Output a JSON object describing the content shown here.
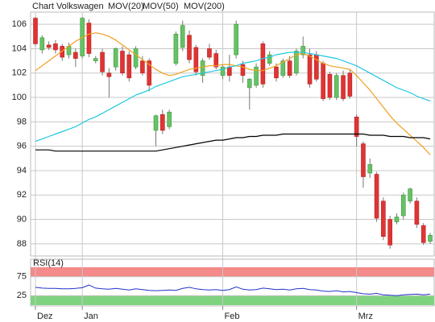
{
  "chart_data": [
    {
      "type": "candlestick",
      "title": "Chart Volkswagen",
      "title_color": "#e2583e",
      "up_color": "#66c266",
      "down_color": "#e03434",
      "categories": [
        "Dez",
        null,
        null,
        null,
        null,
        null,
        null,
        "Jan",
        null,
        null,
        null,
        null,
        null,
        null,
        null,
        null,
        null,
        null,
        null,
        null,
        null,
        null,
        null,
        null,
        null,
        null,
        null,
        null,
        "Feb",
        null,
        null,
        null,
        null,
        null,
        null,
        null,
        null,
        null,
        null,
        null,
        null,
        null,
        null,
        null,
        null,
        null,
        null,
        null,
        "Mrz",
        null,
        null,
        null,
        null,
        null,
        null,
        null,
        null,
        null,
        null,
        null
      ],
      "open": [
        106.5,
        103.9,
        104.3,
        104.4,
        104.2,
        103.5,
        103.7,
        103.4,
        106.1,
        103.0,
        103.7,
        102.0,
        102.5,
        103.8,
        103.5,
        102.5,
        103.0,
        103.0,
        97.3,
        98.6,
        97.6,
        102.8,
        104.1,
        105.1,
        104.1,
        101.8,
        104.0,
        103.6,
        101.8,
        102.5,
        103.5,
        102.7,
        100.8,
        101.0,
        104.4,
        102.8,
        102.5,
        101.8,
        103.0,
        102.0,
        103.5,
        103.5,
        103.5,
        102.8,
        101.9,
        100.0,
        101.8,
        102.0,
        98.4,
        96.2,
        93.8,
        93.7,
        91.5,
        90.0,
        89.8,
        90.3,
        91.5,
        91.5,
        89.5,
        88.2
      ],
      "high": [
        106.6,
        105.1,
        104.6,
        104.7,
        104.4,
        104.5,
        104.0,
        106.6,
        106.4,
        103.4,
        104.0,
        102.4,
        104.1,
        104.2,
        103.8,
        104.2,
        103.4,
        103.2,
        98.6,
        99.0,
        99.0,
        105.4,
        106.3,
        105.5,
        104.3,
        103.2,
        104.4,
        103.9,
        102.7,
        103.5,
        106.3,
        103.0,
        101.6,
        102.8,
        104.6,
        103.8,
        102.8,
        103.2,
        103.4,
        104.0,
        105.0,
        104.0,
        103.8,
        103.0,
        102.1,
        102.0,
        102.2,
        102.3,
        98.6,
        96.4,
        95.0,
        93.9,
        91.8,
        90.3,
        90.5,
        92.2,
        92.6,
        91.8,
        89.7,
        88.9
      ],
      "low": [
        104.2,
        103.6,
        103.9,
        103.6,
        103.0,
        103.2,
        102.5,
        103.2,
        103.3,
        102.8,
        101.8,
        100.0,
        102.2,
        101.8,
        101.3,
        102.3,
        101.8,
        100.5,
        96.0,
        97.0,
        97.4,
        102.6,
        103.8,
        102.8,
        101.8,
        101.2,
        103.1,
        102.3,
        101.5,
        101.3,
        103.2,
        101.2,
        99.0,
        100.8,
        100.8,
        102.6,
        101.3,
        101.6,
        101.6,
        101.8,
        103.2,
        100.8,
        101.3,
        99.7,
        99.8,
        99.8,
        99.7,
        99.9,
        96.0,
        92.6,
        93.4,
        89.8,
        88.3,
        87.6,
        89.6,
        90.0,
        91.3,
        89.3,
        87.9,
        88.0
      ],
      "close": [
        104.4,
        104.9,
        104.1,
        103.9,
        103.3,
        104.2,
        103.2,
        106.5,
        103.6,
        103.2,
        102.1,
        101.7,
        104.0,
        102.0,
        101.6,
        104.0,
        102.0,
        101.0,
        98.5,
        97.3,
        98.8,
        105.2,
        105.9,
        103.1,
        102.1,
        103.0,
        103.3,
        102.5,
        102.5,
        101.8,
        106.0,
        101.8,
        101.5,
        102.5,
        101.1,
        103.5,
        101.6,
        103.0,
        101.8,
        103.8,
        104.2,
        101.1,
        101.5,
        99.9,
        100.0,
        101.8,
        99.9,
        100.1,
        96.8,
        93.5,
        94.5,
        90.1,
        88.6,
        87.9,
        90.2,
        92.0,
        92.5,
        89.6,
        88.1,
        88.7
      ],
      "series": [
        {
          "name": "MOV(20)",
          "color": "#f0a020",
          "values": [
            102.2,
            102.6,
            103.0,
            103.4,
            103.8,
            104.2,
            104.6,
            104.9,
            105.2,
            105.3,
            105.2,
            105.0,
            104.7,
            104.3,
            103.9,
            103.5,
            103.1,
            102.7,
            102.3,
            102.0,
            101.8,
            101.9,
            102.1,
            102.3,
            102.4,
            102.5,
            102.6,
            102.6,
            102.7,
            102.7,
            102.6,
            102.5,
            102.3,
            102.2,
            102.2,
            102.4,
            102.6,
            102.9,
            103.2,
            103.5,
            103.6,
            103.4,
            103.1,
            102.8,
            102.6,
            102.5,
            102.4,
            102.3,
            101.8,
            101.2,
            100.6,
            99.9,
            99.2,
            98.5,
            97.9,
            97.4,
            96.9,
            96.4,
            95.9,
            95.3
          ]
        },
        {
          "name": "MOV(50)",
          "color": "#22c8e0",
          "values": [
            96.4,
            96.6,
            96.8,
            97.0,
            97.2,
            97.4,
            97.6,
            97.9,
            98.2,
            98.4,
            98.7,
            99.0,
            99.3,
            99.6,
            99.9,
            100.2,
            100.4,
            100.6,
            100.9,
            101.1,
            101.3,
            101.5,
            101.7,
            101.8,
            101.9,
            102.0,
            102.1,
            102.2,
            102.3,
            102.5,
            102.6,
            102.8,
            102.9,
            103.0,
            103.2,
            103.3,
            103.5,
            103.6,
            103.7,
            103.7,
            103.7,
            103.6,
            103.5,
            103.4,
            103.3,
            103.2,
            103.0,
            102.8,
            102.6,
            102.3,
            102.0,
            101.7,
            101.4,
            101.1,
            100.8,
            100.6,
            100.4,
            100.1,
            99.9,
            99.7
          ]
        },
        {
          "name": "MOV(200)",
          "color": "#000000",
          "values": [
            95.7,
            95.7,
            95.7,
            95.6,
            95.6,
            95.6,
            95.6,
            95.6,
            95.6,
            95.6,
            95.6,
            95.6,
            95.6,
            95.6,
            95.6,
            95.6,
            95.6,
            95.6,
            95.6,
            95.7,
            95.8,
            95.9,
            96.0,
            96.1,
            96.2,
            96.3,
            96.4,
            96.5,
            96.5,
            96.6,
            96.7,
            96.7,
            96.8,
            96.8,
            96.9,
            96.9,
            96.9,
            97.0,
            97.0,
            97.0,
            97.0,
            97.0,
            97.0,
            97.0,
            97.0,
            97.0,
            97.0,
            97.0,
            97.0,
            97.0,
            96.9,
            96.9,
            96.9,
            96.8,
            96.8,
            96.8,
            96.7,
            96.7,
            96.7,
            96.6
          ]
        }
      ],
      "ylim": [
        87,
        107
      ],
      "yticks": [
        88,
        90,
        92,
        94,
        96,
        98,
        100,
        102,
        104,
        106
      ],
      "grid": true
    },
    {
      "type": "line",
      "title": "RSI(14)",
      "color": "#2233cc",
      "band_colors": [
        "#7fd37f",
        "#f48a8a"
      ],
      "values": [
        47,
        45,
        44,
        44,
        43,
        43,
        44,
        46,
        53,
        45,
        43,
        42,
        44,
        42,
        40,
        43,
        41,
        39,
        38,
        39,
        40,
        39,
        44,
        47,
        43,
        41,
        40,
        41,
        39,
        41,
        48,
        42,
        40,
        41,
        45,
        43,
        41,
        42,
        40,
        43,
        44,
        41,
        40,
        37,
        36,
        38,
        35,
        36,
        33,
        30,
        29,
        31,
        27,
        26,
        25,
        27,
        28,
        29,
        27,
        29
      ],
      "ylim": [
        0,
        100
      ],
      "yticks": [
        25,
        75
      ],
      "grid": true
    }
  ]
}
